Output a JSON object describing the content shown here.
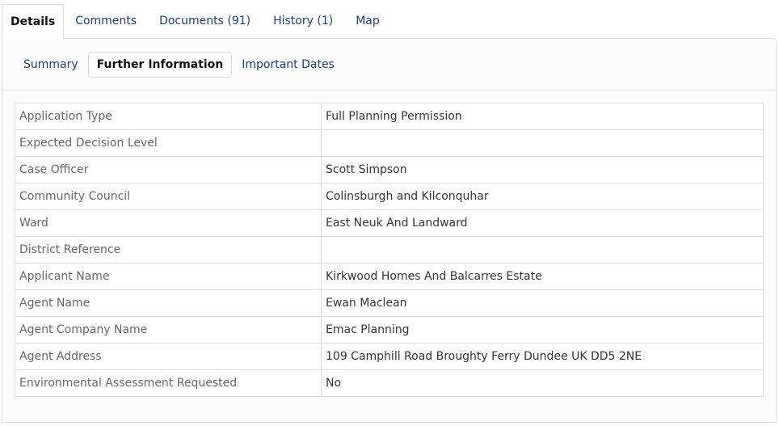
{
  "tabs": [
    "Details",
    "Comments",
    "Documents (91)",
    "History (1)",
    "Map"
  ],
  "subtabs": [
    "Summary",
    "Further Information",
    "Important Dates"
  ],
  "rows": [
    {
      "label": "Application Type",
      "value": "Full Planning Permission"
    },
    {
      "label": "Expected Decision Level",
      "value": ""
    },
    {
      "label": "Case Officer",
      "value": "Scott Simpson"
    },
    {
      "label": "Community Council",
      "value": "Colinsburgh and Kilconquhar"
    },
    {
      "label": "Ward",
      "value": "East Neuk And Landward"
    },
    {
      "label": "District Reference",
      "value": ""
    },
    {
      "label": "Applicant Name",
      "value": "Kirkwood Homes And Balcarres Estate"
    },
    {
      "label": "Agent Name",
      "value": "Ewan Maclean"
    },
    {
      "label": "Agent Company Name",
      "value": "Emac Planning"
    },
    {
      "label": "Agent Address",
      "value": "109 Camphill Road Broughty Ferry Dundee UK DD5 2NE"
    },
    {
      "label": "Environmental Assessment Requested",
      "value": "No"
    }
  ]
}
